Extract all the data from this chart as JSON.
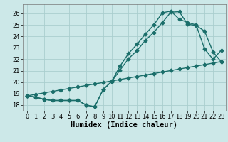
{
  "xlabel": "Humidex (Indice chaleur)",
  "bg_color": "#cce8e8",
  "grid_color": "#aacece",
  "line_color": "#1a6e6a",
  "xlim": [
    -0.5,
    23.5
  ],
  "ylim": [
    17.5,
    26.8
  ],
  "xticks": [
    0,
    1,
    2,
    3,
    4,
    5,
    6,
    7,
    8,
    9,
    10,
    11,
    12,
    13,
    14,
    15,
    16,
    17,
    18,
    19,
    20,
    21,
    22,
    23
  ],
  "yticks": [
    18,
    19,
    20,
    21,
    22,
    23,
    24,
    25,
    26
  ],
  "line1_x": [
    0,
    1,
    2,
    3,
    4,
    5,
    6,
    7,
    8,
    9,
    10,
    11,
    12,
    13,
    14,
    15,
    16,
    17,
    18,
    19,
    20,
    21,
    22,
    23
  ],
  "line1_y": [
    18.8,
    18.7,
    18.5,
    18.4,
    18.4,
    18.4,
    18.4,
    18.0,
    17.85,
    19.35,
    20.05,
    21.05,
    22.05,
    22.75,
    23.65,
    24.35,
    25.2,
    26.1,
    26.15,
    25.05,
    24.95,
    24.45,
    22.65,
    21.75
  ],
  "line2_x": [
    0,
    1,
    2,
    3,
    4,
    5,
    6,
    7,
    8,
    9,
    10,
    11,
    12,
    13,
    14,
    15,
    16,
    17,
    18,
    19,
    20,
    21,
    22,
    23
  ],
  "line2_y": [
    18.8,
    18.7,
    18.5,
    18.4,
    18.4,
    18.4,
    18.4,
    18.0,
    17.85,
    19.35,
    20.05,
    21.4,
    22.5,
    23.3,
    24.2,
    25.0,
    26.05,
    26.2,
    25.5,
    25.2,
    25.0,
    22.9,
    22.0,
    22.8
  ],
  "line3_x": [
    0,
    1,
    2,
    3,
    4,
    5,
    6,
    7,
    8,
    9,
    10,
    11,
    12,
    13,
    14,
    15,
    16,
    17,
    18,
    19,
    20,
    21,
    22,
    23
  ],
  "line3_y": [
    18.8,
    18.93,
    19.06,
    19.19,
    19.32,
    19.45,
    19.58,
    19.71,
    19.84,
    19.97,
    20.1,
    20.23,
    20.36,
    20.49,
    20.62,
    20.75,
    20.88,
    21.01,
    21.14,
    21.27,
    21.4,
    21.53,
    21.66,
    21.8
  ],
  "markersize": 2.5,
  "linewidth": 1.0,
  "xlabel_fontsize": 7.5,
  "tick_fontsize": 6.0
}
